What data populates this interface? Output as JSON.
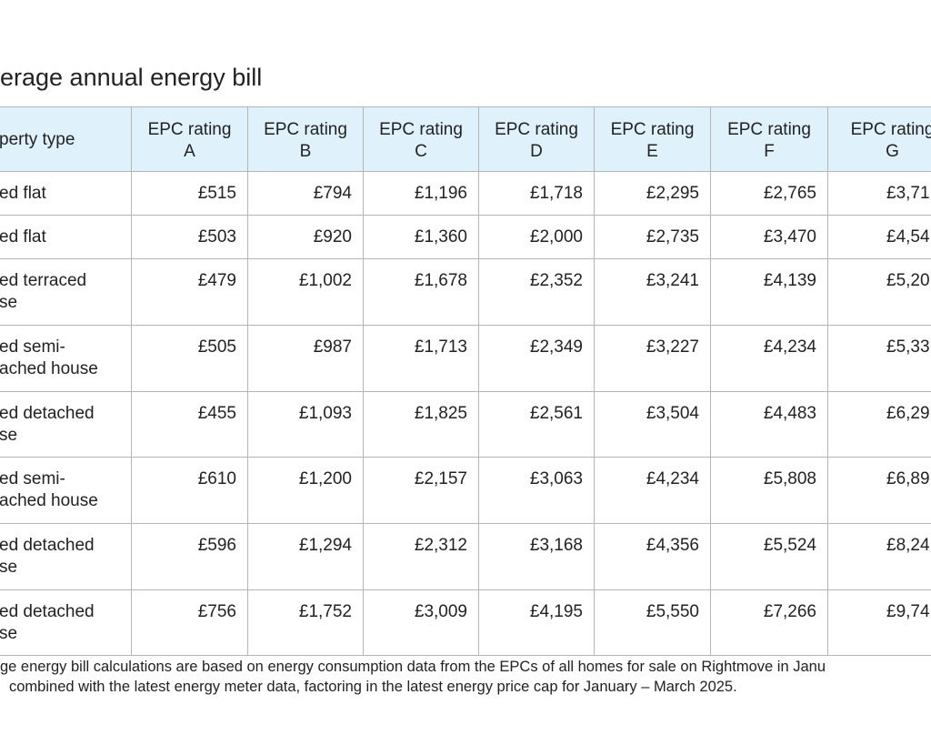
{
  "title": "erage annual energy bill",
  "table": {
    "header": [
      [
        "perty type"
      ],
      [
        "EPC rating",
        "A"
      ],
      [
        "EPC rating",
        "B"
      ],
      [
        "EPC rating",
        "C"
      ],
      [
        "EPC rating",
        "D"
      ],
      [
        "EPC rating",
        "E"
      ],
      [
        "EPC rating",
        "F"
      ],
      [
        "EPC rating",
        "G"
      ]
    ],
    "rows": [
      [
        [
          "ed flat"
        ],
        "£515",
        "£794",
        "£1,196",
        "£1,718",
        "£2,295",
        "£2,765",
        "£3,71"
      ],
      [
        [
          "ed flat"
        ],
        "£503",
        "£920",
        "£1,360",
        "£2,000",
        "£2,735",
        "£3,470",
        "£4,54"
      ],
      [
        [
          "ed terraced",
          "se"
        ],
        "£479",
        "£1,002",
        "£1,678",
        "£2,352",
        "£3,241",
        "£4,139",
        "£5,20"
      ],
      [
        [
          "ed semi-",
          "ached house"
        ],
        "£505",
        "£987",
        "£1,713",
        "£2,349",
        "£3,227",
        "£4,234",
        "£5,33"
      ],
      [
        [
          "ed detached",
          "se"
        ],
        "£455",
        "£1,093",
        "£1,825",
        "£2,561",
        "£3,504",
        "£4,483",
        "£6,29"
      ],
      [
        [
          "ed semi-",
          "ached house"
        ],
        "£610",
        "£1,200",
        "£2,157",
        "£3,063",
        "£4,234",
        "£5,808",
        "£6,89"
      ],
      [
        [
          "ed detached",
          "se"
        ],
        "£596",
        "£1,294",
        "£2,312",
        "£3,168",
        "£4,356",
        "£5,524",
        "£8,24"
      ],
      [
        [
          "ed detached",
          "se"
        ],
        "£756",
        "£1,752",
        "£3,009",
        "£4,195",
        "£5,550",
        "£7,266",
        "£9,74"
      ]
    ]
  },
  "footnote": [
    "ge energy bill calculations are based on energy consumption data from the EPCs of all homes for sale on Rightmove in Janu",
    "combined with the latest energy meter data, factoring in the latest energy price cap for January – March 2025."
  ]
}
